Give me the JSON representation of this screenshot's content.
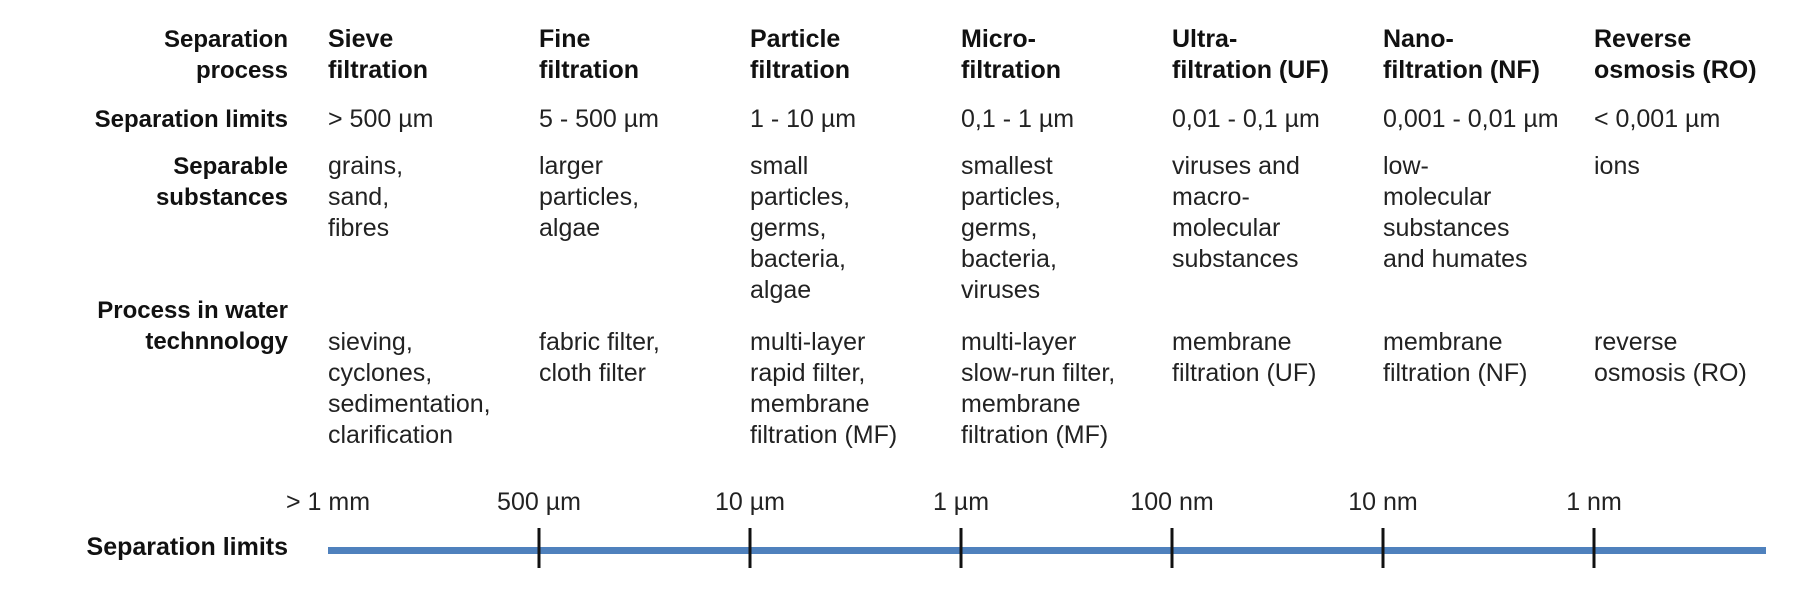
{
  "row_labels": {
    "process": "Separation\nprocess",
    "limits": "Separation limits",
    "substances": "Separable\nsubstances",
    "water": "Process in water\ntechnnology"
  },
  "columns": [
    {
      "name": "Sieve\nfiltration",
      "limit": "> 500 µm",
      "substances": "grains,\nsand,\nfibres",
      "water": "sieving,\ncyclones,\nsedimentation,\nclarification"
    },
    {
      "name": "Fine\nfiltration",
      "limit": "5 - 500 µm",
      "substances": "larger\nparticles,\nalgae",
      "water": "fabric filter,\ncloth filter"
    },
    {
      "name": "Particle\nfiltration",
      "limit": "1 - 10 µm",
      "substances": "small\nparticles,\ngerms,\nbacteria,\nalgae",
      "water": "multi-layer\nrapid filter,\nmembrane\nfiltration (MF)"
    },
    {
      "name": "Micro-\nfiltration",
      "limit": "0,1 - 1 µm",
      "substances": "smallest\nparticles,\ngerms,\nbacteria,\nviruses",
      "water": "multi-layer\nslow-run filter,\nmembrane\nfiltration (MF)"
    },
    {
      "name": "Ultra-\nfiltration (UF)",
      "limit": "0,01 - 0,1 µm",
      "substances": "viruses and\nmacro-\nmolecular\nsubstances",
      "water": "membrane\nfiltration (UF)"
    },
    {
      "name": "Nano-\nfiltration (NF)",
      "limit": "0,001 - 0,01 µm",
      "substances": "low-\nmolecular\nsubstances\nand humates",
      "water": "membrane\nfiltration (NF)"
    },
    {
      "name": "Reverse\nosmosis (RO)",
      "limit": "< 0,001 µm",
      "substances": "ions",
      "water": "reverse\nosmosis (RO)"
    }
  ],
  "scale": {
    "title": "Separation limits",
    "ticks": [
      "> 1 mm",
      "500 µm",
      "10 µm",
      "1 µm",
      "100 nm",
      "10 nm",
      "1 nm"
    ],
    "line_color": "#4f81bd"
  }
}
